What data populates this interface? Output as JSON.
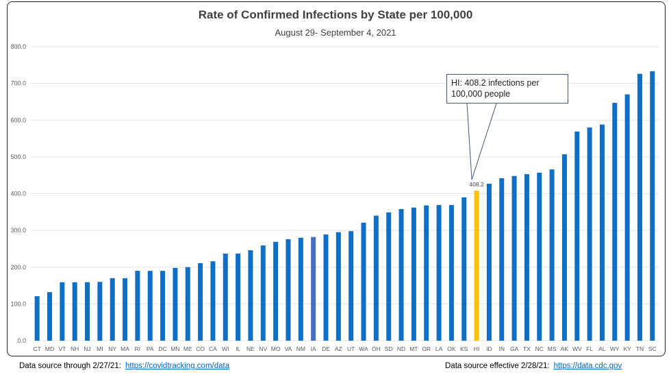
{
  "chart_data": {
    "type": "bar",
    "title": "Rate of Confirmed Infections by State per 100,000",
    "subtitle": "August 29- September 4, 2021",
    "ylim": [
      0,
      800
    ],
    "yticks": [
      "0.0",
      "100.0",
      "200.0",
      "300.0",
      "400.0",
      "500.0",
      "600.0",
      "700.0",
      "800.0"
    ],
    "grid": true,
    "categories": [
      "CT",
      "MD",
      "VT",
      "NH",
      "NJ",
      "MI",
      "NY",
      "MA",
      "RI",
      "PA",
      "DC",
      "MN",
      "ME",
      "CO",
      "CA",
      "WI",
      "IL",
      "NE",
      "NV",
      "MO",
      "VA",
      "NM",
      "IA",
      "DE",
      "AZ",
      "UT",
      "WA",
      "OH",
      "SD",
      "ND",
      "MT",
      "OR",
      "LA",
      "OK",
      "KS",
      "HI",
      "ID",
      "IN",
      "GA",
      "TX",
      "NC",
      "MS",
      "AK",
      "WV",
      "FL",
      "AL",
      "WY",
      "KY",
      "TN",
      "SC"
    ],
    "values": [
      121,
      132,
      159,
      159,
      159,
      160,
      170,
      170,
      190,
      190,
      190,
      198,
      200,
      211,
      216,
      237,
      237,
      246,
      259,
      269,
      276,
      280,
      282,
      289,
      295,
      298,
      321,
      340,
      349,
      358,
      362,
      368,
      369,
      369,
      390,
      408.2,
      427,
      442,
      448,
      453,
      457,
      466,
      507,
      569,
      580,
      588,
      647,
      670,
      726,
      733
    ],
    "colors": {
      "default": "#0f6fc6",
      "highlight": "#ffc000",
      "IA": "#4472c4"
    },
    "highlight": "HI",
    "data_label": "408.2",
    "annotation": "HI: 408.2 infections per 100,000 people"
  },
  "footer": {
    "left_label": "Data source through 2/27/21:",
    "left_link": "https://covidtracking.com/data",
    "right_label": "Data source effective 2/28/21:",
    "right_link": "https://data.cdc.gov"
  }
}
